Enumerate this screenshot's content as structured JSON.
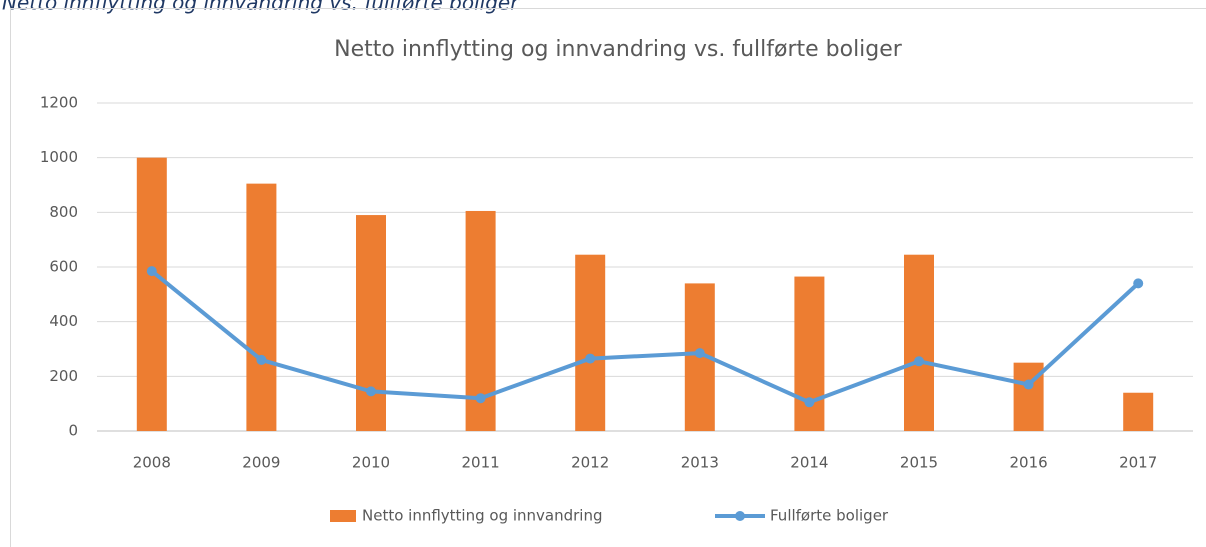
{
  "caption": "Netto innflytting og innvandring vs. fullførte boliger",
  "chart_data": {
    "type": "bar_line",
    "title": "Netto innflytting og innvandring vs. fullførte boliger",
    "categories": [
      "2008",
      "2009",
      "2010",
      "2011",
      "2012",
      "2013",
      "2014",
      "2015",
      "2016",
      "2017"
    ],
    "series": [
      {
        "name": "Netto innflytting og innvandring",
        "type": "bar",
        "color": "#ed7d31",
        "values": [
          1000,
          905,
          790,
          805,
          645,
          540,
          565,
          645,
          250,
          140
        ]
      },
      {
        "name": "Fullførte boliger",
        "type": "line",
        "color": "#5b9bd5",
        "values": [
          585,
          260,
          145,
          120,
          265,
          285,
          105,
          255,
          170,
          540
        ]
      }
    ],
    "ylim": [
      0,
      1200
    ],
    "yticks": [
      0,
      200,
      400,
      600,
      800,
      1000,
      1200
    ],
    "grid": true,
    "legend": "bottom"
  }
}
